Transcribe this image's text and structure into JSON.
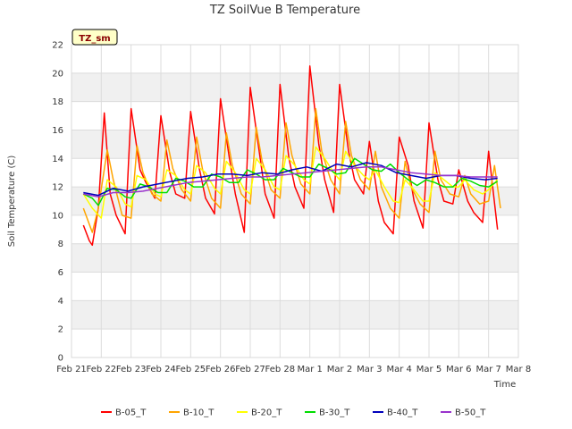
{
  "chart_data": {
    "type": "line",
    "title": "TZ SoilVue B Temperature",
    "xlabel": "Time",
    "ylabel": "Soil Temperature (C)",
    "site_label": "TZ_sm",
    "ylim": [
      0,
      22
    ],
    "y_ticks": [
      "0",
      "2",
      "4",
      "6",
      "8",
      "10",
      "12",
      "14",
      "16",
      "18",
      "20",
      "22"
    ],
    "xlim": [
      0,
      15
    ],
    "x_ticks": [
      "Feb 21",
      "Feb 22",
      "Feb 23",
      "Feb 24",
      "Feb 25",
      "Feb 26",
      "Feb 27",
      "Feb 28",
      "Mar 1",
      "Mar 2",
      "Mar 3",
      "Mar 4",
      "Mar 5",
      "Mar 6",
      "Mar 7",
      "Mar 8"
    ],
    "grid": true,
    "legend_position": "bottom",
    "series": [
      {
        "name": "B-05_T",
        "color": "#ff0000",
        "x": [
          0.4,
          0.6,
          0.7,
          0.9,
          1.1,
          1.3,
          1.5,
          1.8,
          2.0,
          2.3,
          2.5,
          2.8,
          3.0,
          3.3,
          3.5,
          3.8,
          4.0,
          4.3,
          4.5,
          4.8,
          5.0,
          5.3,
          5.5,
          5.8,
          6.0,
          6.3,
          6.5,
          6.8,
          7.0,
          7.3,
          7.5,
          7.8,
          8.0,
          8.3,
          8.5,
          8.8,
          9.0,
          9.3,
          9.5,
          9.8,
          10.0,
          10.3,
          10.5,
          10.8,
          11.0,
          11.3,
          11.5,
          11.8,
          12.0,
          12.3,
          12.5,
          12.8,
          13.0,
          13.3,
          13.5,
          13.8,
          14.0,
          14.3
        ],
        "y": [
          9.3,
          8.2,
          7.9,
          10.5,
          17.2,
          11.5,
          10.0,
          8.7,
          17.5,
          13.2,
          12.3,
          11.2,
          17.0,
          13.0,
          11.5,
          11.2,
          17.3,
          13.2,
          11.2,
          10.1,
          18.2,
          14.0,
          11.5,
          8.8,
          19.0,
          14.5,
          11.5,
          9.8,
          19.2,
          14.0,
          12.0,
          10.5,
          20.5,
          15.0,
          12.5,
          10.2,
          19.2,
          14.5,
          12.5,
          11.5,
          15.2,
          11.0,
          9.5,
          8.7,
          15.5,
          13.5,
          11.0,
          9.1,
          16.5,
          12.5,
          11.0,
          10.8,
          13.2,
          11.0,
          10.2,
          9.5,
          14.5,
          9.0
        ]
      },
      {
        "name": "B-10_T",
        "color": "#ffa500",
        "x": [
          0.4,
          0.7,
          0.9,
          1.2,
          1.4,
          1.7,
          2.0,
          2.2,
          2.4,
          2.7,
          3.0,
          3.2,
          3.4,
          3.7,
          4.0,
          4.2,
          4.4,
          4.7,
          5.0,
          5.2,
          5.4,
          5.7,
          6.0,
          6.2,
          6.4,
          6.7,
          7.0,
          7.2,
          7.4,
          7.7,
          8.0,
          8.2,
          8.4,
          8.7,
          9.0,
          9.2,
          9.4,
          9.7,
          10.0,
          10.2,
          10.4,
          10.7,
          11.0,
          11.2,
          11.4,
          11.7,
          12.0,
          12.2,
          12.4,
          12.7,
          13.0,
          13.2,
          13.4,
          13.7,
          14.0,
          14.2,
          14.4
        ],
        "y": [
          10.5,
          8.8,
          10.5,
          14.6,
          12.5,
          10.0,
          9.8,
          14.9,
          13.0,
          11.5,
          11.0,
          15.3,
          13.3,
          11.8,
          11.0,
          15.5,
          13.2,
          11.2,
          10.5,
          15.8,
          13.5,
          11.5,
          10.8,
          16.2,
          13.8,
          11.8,
          11.2,
          16.5,
          14.2,
          12.2,
          11.5,
          17.5,
          14.5,
          12.5,
          11.5,
          16.6,
          14.2,
          12.5,
          11.8,
          14.5,
          12.0,
          10.5,
          9.8,
          13.8,
          12.0,
          10.8,
          10.2,
          14.5,
          12.5,
          11.5,
          11.3,
          12.8,
          11.5,
          10.8,
          11.0,
          13.5,
          10.5
        ]
      },
      {
        "name": "B-20_T",
        "color": "#ffff00",
        "x": [
          0.4,
          0.7,
          1.0,
          1.2,
          1.5,
          1.8,
          2.0,
          2.2,
          2.5,
          2.8,
          3.0,
          3.2,
          3.5,
          3.8,
          4.0,
          4.2,
          4.5,
          4.8,
          5.0,
          5.2,
          5.5,
          5.8,
          6.0,
          6.2,
          6.5,
          6.8,
          7.0,
          7.2,
          7.5,
          7.8,
          8.0,
          8.2,
          8.5,
          8.8,
          9.0,
          9.2,
          9.5,
          9.8,
          10.0,
          10.2,
          10.5,
          10.8,
          11.0,
          11.2,
          11.5,
          11.8,
          12.0,
          12.2,
          12.5,
          12.8,
          13.0,
          13.2,
          13.5,
          13.8,
          14.0,
          14.3
        ],
        "y": [
          11.5,
          10.5,
          9.8,
          12.5,
          12.0,
          10.8,
          10.6,
          12.8,
          12.5,
          11.5,
          11.3,
          13.2,
          12.8,
          11.8,
          11.5,
          13.5,
          13.0,
          11.9,
          11.5,
          13.8,
          13.0,
          11.8,
          11.5,
          14.0,
          13.2,
          12.0,
          11.8,
          14.2,
          13.5,
          12.5,
          12.2,
          14.8,
          14.0,
          13.0,
          12.5,
          14.5,
          13.5,
          12.8,
          12.5,
          13.2,
          12.0,
          11.0,
          10.9,
          12.5,
          11.8,
          11.0,
          11.0,
          13.0,
          12.5,
          12.0,
          12.0,
          12.5,
          11.8,
          11.5,
          11.8,
          12.5
        ]
      },
      {
        "name": "B-30_T",
        "color": "#00dd00",
        "x": [
          0.4,
          0.7,
          0.9,
          1.2,
          1.5,
          1.8,
          2.0,
          2.3,
          2.6,
          2.9,
          3.2,
          3.5,
          3.8,
          4.1,
          4.4,
          4.7,
          5.0,
          5.3,
          5.6,
          5.9,
          6.2,
          6.5,
          6.8,
          7.1,
          7.4,
          7.7,
          8.0,
          8.3,
          8.6,
          8.9,
          9.2,
          9.5,
          9.8,
          10.1,
          10.4,
          10.7,
          11.0,
          11.3,
          11.6,
          11.9,
          12.2,
          12.5,
          12.8,
          13.1,
          13.4,
          13.7,
          14.0,
          14.3
        ],
        "y": [
          11.5,
          11.2,
          10.7,
          11.9,
          11.8,
          11.3,
          11.2,
          12.2,
          12.0,
          11.6,
          11.6,
          12.6,
          12.4,
          12.0,
          12.0,
          12.9,
          12.7,
          12.3,
          12.3,
          13.2,
          12.9,
          12.5,
          12.5,
          13.3,
          13.0,
          12.7,
          12.7,
          13.6,
          13.3,
          12.9,
          13.0,
          14.0,
          13.6,
          13.2,
          13.1,
          13.6,
          13.0,
          12.5,
          12.1,
          12.5,
          12.3,
          12.0,
          12.0,
          12.6,
          12.4,
          12.1,
          12.0,
          12.4
        ]
      },
      {
        "name": "B-40_T",
        "color": "#0000bb",
        "x": [
          0.4,
          0.9,
          1.4,
          1.9,
          2.4,
          2.9,
          3.4,
          3.9,
          4.4,
          4.9,
          5.4,
          5.9,
          6.4,
          6.9,
          7.4,
          7.9,
          8.4,
          8.9,
          9.4,
          9.9,
          10.4,
          10.9,
          11.4,
          11.9,
          12.4,
          12.9,
          13.4,
          13.9,
          14.3
        ],
        "y": [
          11.6,
          11.4,
          11.9,
          11.7,
          12.0,
          12.2,
          12.4,
          12.6,
          12.7,
          12.9,
          12.9,
          12.8,
          13.0,
          12.9,
          13.2,
          13.4,
          13.1,
          13.6,
          13.4,
          13.7,
          13.5,
          13.0,
          12.8,
          12.6,
          12.8,
          12.8,
          12.6,
          12.5,
          12.6
        ]
      },
      {
        "name": "B-50_T",
        "color": "#9932cc",
        "x": [
          0.4,
          0.9,
          1.4,
          1.9,
          2.4,
          2.9,
          3.4,
          3.9,
          4.4,
          4.9,
          5.4,
          5.9,
          6.4,
          6.9,
          7.4,
          7.9,
          8.4,
          8.9,
          9.4,
          9.9,
          10.4,
          10.9,
          11.4,
          11.9,
          12.4,
          12.9,
          13.4,
          13.9,
          14.3
        ],
        "y": [
          11.5,
          11.3,
          11.6,
          11.6,
          11.7,
          11.9,
          12.1,
          12.3,
          12.4,
          12.5,
          12.6,
          12.7,
          12.7,
          12.8,
          12.9,
          13.0,
          13.1,
          13.2,
          13.3,
          13.4,
          13.4,
          13.2,
          13.0,
          12.9,
          12.8,
          12.8,
          12.7,
          12.7,
          12.7
        ]
      }
    ]
  }
}
